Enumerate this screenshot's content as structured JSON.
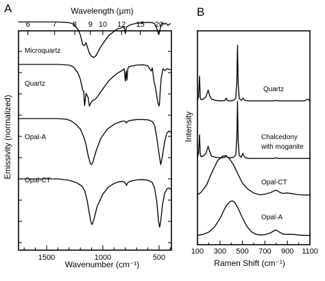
{
  "chart_data": [
    {
      "type": "line",
      "panel": "A",
      "xlabel": "Wavenumber (cm⁻¹)",
      "ylabel": "Emissivity (normalized)",
      "top_axis_label": "Wavelength (μm)",
      "x_reversed": true,
      "xlim": [
        1750,
        390
      ],
      "x_ticks": [
        1500,
        1000,
        500
      ],
      "x_tick_labels": [
        "1500",
        "1000",
        "500"
      ],
      "top_ticks": [
        6,
        7,
        8,
        9,
        10,
        12,
        15,
        20
      ],
      "top_tick_labels": [
        "6",
        "7",
        "8",
        "9",
        "10",
        "12",
        "15",
        "20"
      ],
      "series": [
        {
          "name": "Microquartz",
          "x": [
            1750,
            1400,
            1300,
            1260,
            1220,
            1200,
            1180,
            1165,
            1150,
            1120,
            1100,
            1080,
            1060,
            1020,
            950,
            870,
            810,
            800,
            790,
            760,
            700,
            640,
            600,
            560,
            540,
            520,
            505,
            495,
            485,
            470,
            455,
            440,
            420,
            400
          ],
          "y": [
            1.0,
            1.0,
            0.985,
            0.95,
            0.82,
            0.7,
            0.48,
            0.45,
            0.52,
            0.28,
            0.2,
            0.18,
            0.22,
            0.42,
            0.68,
            0.84,
            0.88,
            0.73,
            0.88,
            0.93,
            0.97,
            0.985,
            0.99,
            0.985,
            0.96,
            0.85,
            0.72,
            0.76,
            0.92,
            0.98,
            0.95,
            0.97,
            0.92,
            0.96
          ]
        },
        {
          "name": "Quartz",
          "x": [
            1750,
            1400,
            1300,
            1260,
            1220,
            1200,
            1180,
            1170,
            1162,
            1150,
            1130,
            1120,
            1105,
            1090,
            1070,
            1050,
            1000,
            950,
            900,
            870,
            830,
            810,
            800,
            792,
            785,
            778,
            770,
            750,
            700,
            640,
            600,
            570,
            560,
            545,
            530,
            520,
            510,
            500,
            495,
            490,
            480,
            465,
            450,
            430,
            400
          ],
          "y": [
            1.0,
            1.0,
            0.985,
            0.94,
            0.8,
            0.66,
            0.42,
            0.38,
            0.06,
            0.34,
            0.24,
            0.05,
            0.13,
            0.18,
            0.2,
            0.26,
            0.44,
            0.62,
            0.74,
            0.8,
            0.86,
            0.9,
            0.62,
            0.85,
            0.64,
            0.9,
            0.94,
            0.96,
            0.985,
            0.99,
            0.97,
            0.85,
            0.92,
            0.62,
            0.45,
            0.28,
            0.12,
            0.05,
            0.15,
            0.38,
            0.7,
            0.9,
            0.86,
            0.9,
            0.88
          ]
        },
        {
          "name": "Opal-A",
          "x": [
            1750,
            1400,
            1320,
            1280,
            1240,
            1200,
            1170,
            1150,
            1130,
            1110,
            1100,
            1090,
            1060,
            1020,
            960,
            900,
            860,
            820,
            800,
            790,
            780,
            760,
            700,
            650,
            600,
            560,
            540,
            520,
            500,
            485,
            470,
            450,
            430,
            410,
            400
          ],
          "y": [
            1.0,
            1.0,
            0.985,
            0.95,
            0.88,
            0.78,
            0.62,
            0.46,
            0.22,
            0.06,
            0.04,
            0.08,
            0.32,
            0.58,
            0.78,
            0.88,
            0.92,
            0.95,
            0.94,
            0.91,
            0.94,
            0.96,
            0.98,
            0.98,
            0.975,
            0.94,
            0.86,
            0.6,
            0.26,
            0.04,
            0.22,
            0.52,
            0.7,
            0.74,
            0.72
          ]
        },
        {
          "name": "Opal-CT",
          "x": [
            1750,
            1400,
            1320,
            1280,
            1240,
            1200,
            1180,
            1160,
            1140,
            1120,
            1105,
            1095,
            1080,
            1050,
            1000,
            950,
            900,
            860,
            820,
            800,
            790,
            780,
            760,
            700,
            650,
            600,
            560,
            540,
            520,
            505,
            495,
            485,
            470,
            450,
            430,
            410,
            400
          ],
          "y": [
            1.0,
            1.0,
            0.98,
            0.96,
            0.93,
            0.88,
            0.84,
            0.76,
            0.58,
            0.32,
            0.14,
            0.1,
            0.2,
            0.46,
            0.7,
            0.84,
            0.91,
            0.94,
            0.95,
            0.92,
            0.87,
            0.92,
            0.95,
            0.98,
            0.985,
            0.975,
            0.93,
            0.82,
            0.55,
            0.18,
            0.05,
            0.16,
            0.48,
            0.72,
            0.8,
            0.82,
            0.8
          ]
        }
      ]
    },
    {
      "type": "line",
      "panel": "B",
      "xlabel": "Ramen Shift (cm⁻¹)",
      "ylabel": "Intensity",
      "xlim": [
        100,
        1100
      ],
      "x_ticks": [
        100,
        300,
        500,
        700,
        900,
        1100
      ],
      "x_tick_labels": [
        "100",
        "300",
        "500",
        "700",
        "900",
        "1100"
      ],
      "series": [
        {
          "name": "Quartz",
          "x": [
            100,
            110,
            118,
            125,
            132,
            150,
            175,
            195,
            210,
            225,
            260,
            310,
            345,
            355,
            365,
            390,
            420,
            440,
            450,
            456,
            462,
            472,
            490,
            505,
            520,
            560,
            650,
            700,
            780,
            800,
            820,
            880,
            950,
            1000,
            1050,
            1080,
            1100
          ],
          "y": [
            0.03,
            0.08,
            0.45,
            0.06,
            0.03,
            0.04,
            0.08,
            0.2,
            0.1,
            0.04,
            0.02,
            0.01,
            0.02,
            0.06,
            0.02,
            0.01,
            0.02,
            0.06,
            0.35,
            1.0,
            0.3,
            0.05,
            0.02,
            0.06,
            0.02,
            0.01,
            0.01,
            0.01,
            0.01,
            0.02,
            0.01,
            0.01,
            0.01,
            0.01,
            0.01,
            0.04,
            0.01
          ]
        },
        {
          "name": "Chalcedony with moganite",
          "x": [
            100,
            110,
            118,
            125,
            132,
            150,
            175,
            195,
            210,
            225,
            260,
            310,
            345,
            355,
            365,
            390,
            420,
            440,
            450,
            456,
            462,
            472,
            490,
            503,
            515,
            530,
            560,
            650,
            780,
            800,
            820,
            900,
            1000,
            1100
          ],
          "y": [
            0.03,
            0.1,
            0.42,
            0.08,
            0.04,
            0.05,
            0.1,
            0.22,
            0.12,
            0.05,
            0.03,
            0.02,
            0.03,
            0.06,
            0.03,
            0.02,
            0.03,
            0.07,
            0.35,
            1.0,
            0.3,
            0.06,
            0.03,
            0.1,
            0.04,
            0.02,
            0.01,
            0.01,
            0.01,
            0.02,
            0.01,
            0.01,
            0.01,
            0.01
          ]
        },
        {
          "name": "Opal-CT",
          "x": [
            100,
            130,
            180,
            230,
            280,
            320,
            350,
            380,
            420,
            460,
            500,
            550,
            600,
            650,
            700,
            750,
            780,
            800,
            830,
            860,
            900,
            950,
            1000,
            1050,
            1100
          ],
          "y": [
            0.05,
            0.1,
            0.28,
            0.6,
            0.88,
            0.98,
            1.0,
            0.94,
            0.78,
            0.55,
            0.33,
            0.18,
            0.09,
            0.05,
            0.06,
            0.1,
            0.14,
            0.16,
            0.11,
            0.08,
            0.09,
            0.07,
            0.05,
            0.04,
            0.04
          ]
        },
        {
          "name": "Opal-A",
          "x": [
            100,
            150,
            200,
            250,
            300,
            330,
            360,
            390,
            410,
            430,
            460,
            500,
            540,
            580,
            620,
            660,
            700,
            750,
            780,
            800,
            830,
            860,
            900,
            950,
            1000,
            1050,
            1100
          ],
          "y": [
            0.03,
            0.06,
            0.12,
            0.26,
            0.5,
            0.7,
            0.88,
            0.98,
            1.0,
            0.96,
            0.8,
            0.52,
            0.28,
            0.13,
            0.06,
            0.04,
            0.05,
            0.1,
            0.16,
            0.18,
            0.12,
            0.07,
            0.06,
            0.06,
            0.04,
            0.03,
            0.03
          ]
        }
      ]
    }
  ],
  "panel_a": {
    "letter": "A",
    "top_label": "Wavelength (μm)",
    "ylabel": "Emissivity (normalized)",
    "xlabel": "Wavenumber (cm⁻¹)",
    "labels": [
      "Microquartz",
      "Quartz",
      "Opal-A",
      "Opal-CT"
    ]
  },
  "panel_b": {
    "letter": "B",
    "ylabel": "Intensity",
    "xlabel": "Ramen Shift (cm⁻¹)",
    "labels": [
      "Quartz",
      "Chalcedony",
      "with moganite",
      "Opal-CT",
      "Opal-A"
    ]
  }
}
